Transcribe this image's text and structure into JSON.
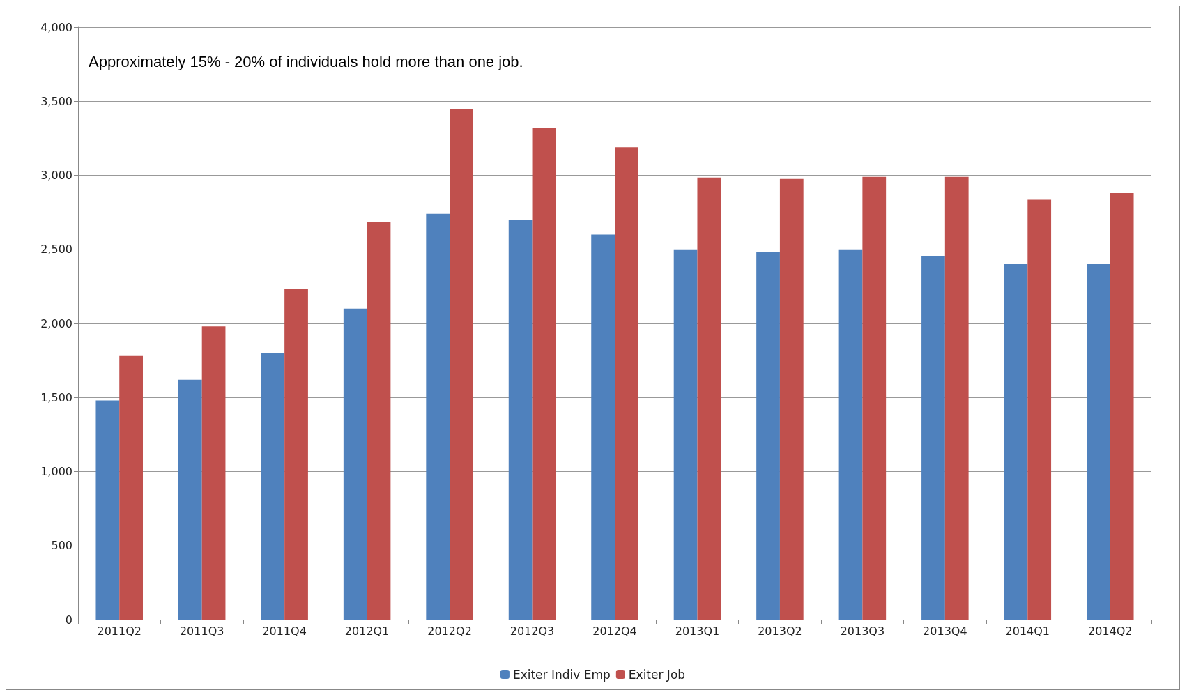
{
  "chart_data": {
    "type": "bar",
    "categories": [
      "2011Q2",
      "2011Q3",
      "2011Q4",
      "2012Q1",
      "2012Q2",
      "2012Q3",
      "2012Q4",
      "2013Q1",
      "2013Q2",
      "2013Q3",
      "2013Q4",
      "2014Q1",
      "2014Q2"
    ],
    "series": [
      {
        "name": "Exiter Indiv Emp",
        "color": "#4f81bd",
        "values": [
          1480,
          1620,
          1800,
          2100,
          2740,
          2700,
          2600,
          2500,
          2480,
          2500,
          2455,
          2400,
          2400
        ]
      },
      {
        "name": "Exiter Job",
        "color": "#c0504d",
        "values": [
          1780,
          1980,
          2235,
          2685,
          3450,
          3320,
          3190,
          2985,
          2975,
          2990,
          2990,
          2835,
          2880
        ]
      }
    ],
    "ylim": [
      0,
      4000
    ],
    "yticks": [
      {
        "value": 0,
        "label": "0"
      },
      {
        "value": 500,
        "label": "500"
      },
      {
        "value": 1000,
        "label": "1,000"
      },
      {
        "value": 1500,
        "label": "1,500"
      },
      {
        "value": 2000,
        "label": "2,000"
      },
      {
        "value": 2500,
        "label": "2,500"
      },
      {
        "value": 3000,
        "label": "3,000"
      },
      {
        "value": 3500,
        "label": "3,500"
      },
      {
        "value": 4000,
        "label": "4,000"
      }
    ],
    "annotations": [
      "Approximately 15% - 20% of individuals hold more than one job."
    ],
    "grid": "y",
    "legend": "bottom"
  }
}
